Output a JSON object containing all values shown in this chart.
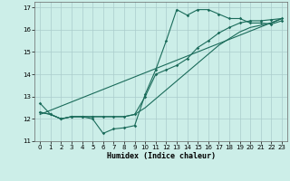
{
  "title": "",
  "xlabel": "Humidex (Indice chaleur)",
  "ylabel": "",
  "bg_color": "#cceee8",
  "grid_color": "#aacccc",
  "line_color": "#1a6b5a",
  "xlim": [
    -0.5,
    23.5
  ],
  "ylim": [
    11.0,
    17.25
  ],
  "xticks": [
    0,
    1,
    2,
    3,
    4,
    5,
    6,
    7,
    8,
    9,
    10,
    11,
    12,
    13,
    14,
    15,
    16,
    17,
    18,
    19,
    20,
    21,
    22,
    23
  ],
  "yticks": [
    11,
    12,
    13,
    14,
    15,
    16,
    17
  ],
  "line1_x": [
    0,
    1,
    2,
    3,
    4,
    5,
    6,
    7,
    8,
    9,
    10,
    11,
    12,
    13,
    14,
    15,
    16,
    17,
    18,
    19,
    20,
    21,
    22,
    23
  ],
  "line1_y": [
    12.7,
    12.2,
    12.0,
    12.1,
    12.1,
    12.0,
    11.35,
    11.55,
    11.6,
    11.7,
    13.1,
    14.2,
    15.5,
    16.9,
    16.65,
    16.9,
    16.9,
    16.7,
    16.5,
    16.5,
    16.3,
    16.3,
    16.25,
    16.4
  ],
  "line2_x": [
    0,
    1,
    2,
    3,
    4,
    5,
    6,
    7,
    8,
    9,
    10,
    11,
    12,
    13,
    14,
    15,
    16,
    17,
    18,
    19,
    20,
    21,
    22,
    23
  ],
  "line2_y": [
    12.3,
    12.2,
    12.0,
    12.1,
    12.1,
    12.1,
    12.1,
    12.1,
    12.1,
    12.2,
    13.0,
    14.0,
    14.2,
    14.4,
    14.7,
    15.2,
    15.5,
    15.85,
    16.1,
    16.3,
    16.4,
    16.4,
    16.45,
    16.5
  ],
  "line3_x": [
    0,
    1,
    2,
    3,
    4,
    5,
    6,
    7,
    8,
    9,
    10,
    11,
    12,
    13,
    14,
    15,
    16,
    17,
    18,
    19,
    20,
    21,
    22,
    23
  ],
  "line3_y": [
    12.3,
    12.2,
    12.0,
    12.1,
    12.1,
    12.1,
    12.1,
    12.1,
    12.1,
    12.2,
    12.5,
    12.9,
    13.3,
    13.7,
    14.1,
    14.5,
    14.9,
    15.3,
    15.6,
    15.9,
    16.1,
    16.2,
    16.3,
    16.5
  ],
  "line4_x": [
    0,
    23
  ],
  "line4_y": [
    12.2,
    16.5
  ]
}
